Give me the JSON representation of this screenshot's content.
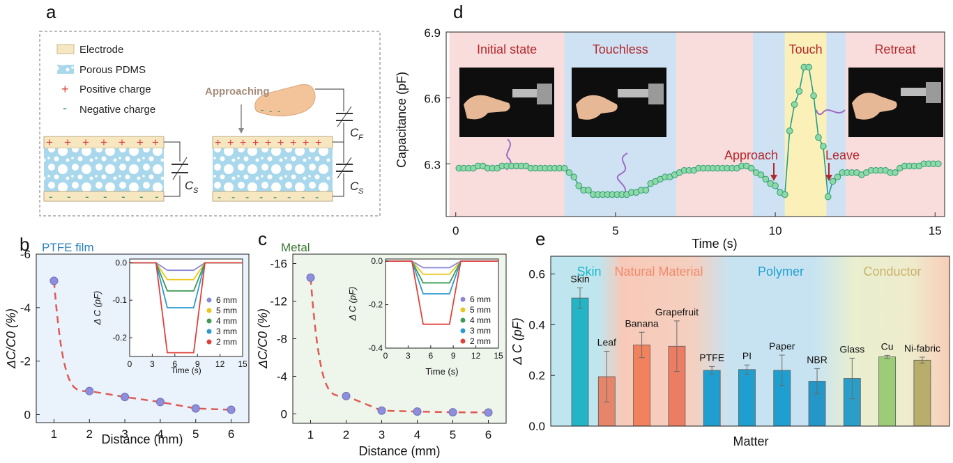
{
  "panels": {
    "a": "a",
    "b": "b",
    "c": "c",
    "d": "d",
    "e": "e"
  },
  "schematic": {
    "legend": [
      "Electrode",
      "Porous PDMS",
      "Positive charge",
      "Negative charge"
    ],
    "approaching": "Approaching",
    "cs": "C",
    "cs_sub": "S",
    "cf": "C",
    "cf_sub": "F",
    "colors": {
      "electrode": "#f6e7c1",
      "pdms": "#a9d8ec",
      "positive": "#e0413b",
      "negative": "#2e8b6b"
    }
  },
  "chart_data": [
    {
      "id": "b",
      "type": "scatter",
      "title": "PTFE film",
      "xlabel": "Distance (mm)",
      "ylabel": "ΔC/C0 (%)",
      "x": [
        1,
        2,
        3,
        4,
        5,
        6
      ],
      "y": [
        -5.0,
        -0.88,
        -0.66,
        -0.47,
        -0.23,
        -0.18
      ],
      "xlim": [
        0.5,
        6.5
      ],
      "ylim": [
        0.3,
        -6.0
      ],
      "xticks": [
        "1",
        "2",
        "3",
        "4",
        "5",
        "6"
      ],
      "yticks": [
        "-6",
        "-4",
        "-2",
        "0"
      ],
      "ytick_values": [
        -6,
        -4,
        -2,
        0
      ],
      "fit": "dashed red exponential",
      "background": "#eaf3fb",
      "inset": {
        "type": "line",
        "xlabel": "Time (s)",
        "ylabel": "Δ C (pF)",
        "xlim": [
          0,
          15
        ],
        "ylim": [
          0.01,
          -0.25
        ],
        "xticks": [
          "0",
          "3",
          "6",
          "9",
          "12",
          "15"
        ],
        "yticks": [
          "0.0",
          "-0.1",
          "-0.2"
        ],
        "ytick_values": [
          0,
          -0.1,
          -0.2
        ],
        "series": [
          {
            "name": "6 mm",
            "color": "#8a87d6",
            "dip": -0.02
          },
          {
            "name": "5 mm",
            "color": "#e8c61b",
            "dip": -0.045
          },
          {
            "name": "4 mm",
            "color": "#3e9a55",
            "dip": -0.075
          },
          {
            "name": "3 mm",
            "color": "#2a9bd0",
            "dip": -0.12
          },
          {
            "name": "2 mm",
            "color": "#e0413b",
            "dip": -0.24
          }
        ]
      }
    },
    {
      "id": "c",
      "type": "scatter",
      "title": "Metal",
      "xlabel": "Distance (mm)",
      "ylabel": "ΔC/C0 (%)",
      "x": [
        1,
        2,
        3,
        4,
        5,
        6
      ],
      "y": [
        -14.5,
        -1.9,
        -0.35,
        -0.25,
        -0.18,
        -0.15
      ],
      "xlim": [
        0.5,
        6.5
      ],
      "ylim": [
        1.0,
        -17.0
      ],
      "xticks": [
        "1",
        "2",
        "3",
        "4",
        "5",
        "6"
      ],
      "yticks": [
        "-16",
        "-12",
        "-8",
        "-4",
        "0"
      ],
      "ytick_values": [
        -16,
        -12,
        -8,
        -4,
        0
      ],
      "fit": "dashed red exponential",
      "background": "#eef5ea",
      "inset": {
        "type": "line",
        "xlabel": "Time (s)",
        "ylabel": "Δ C (pF)",
        "xlim": [
          0,
          15
        ],
        "ylim": [
          0.01,
          -0.4
        ],
        "xticks": [
          "0",
          "3",
          "6",
          "9",
          "12",
          "15"
        ],
        "yticks": [
          "0.0",
          "-0.2",
          "-0.4"
        ],
        "ytick_values": [
          0,
          -0.2,
          -0.4
        ],
        "series": [
          {
            "name": "6 mm",
            "color": "#8a87d6",
            "dip": -0.03
          },
          {
            "name": "5 mm",
            "color": "#e8c61b",
            "dip": -0.06
          },
          {
            "name": "4 mm",
            "color": "#3e9a55",
            "dip": -0.1
          },
          {
            "name": "3 mm",
            "color": "#2a9bd0",
            "dip": -0.15
          },
          {
            "name": "2 mm",
            "color": "#e0413b",
            "dip": -0.29
          }
        ]
      }
    },
    {
      "id": "d",
      "type": "line",
      "title": "",
      "xlabel": "Time (s)",
      "ylabel": "Capacitance (pF)",
      "xlim": [
        -0.3,
        15.3
      ],
      "ylim": [
        6.06,
        6.9
      ],
      "xticks": [
        "0",
        "5",
        "10",
        "15"
      ],
      "xtick_values": [
        0,
        5,
        10,
        15
      ],
      "yticks": [
        "6.3",
        "6.6",
        "6.9"
      ],
      "ytick_values": [
        6.3,
        6.6,
        6.9
      ],
      "regions": [
        {
          "label": "Initial state",
          "from": -0.2,
          "to": 3.4,
          "color": "#f9dcdc"
        },
        {
          "label": "Touchless",
          "from": 3.4,
          "to": 6.9,
          "color": "#cfe2f3"
        },
        {
          "label": "",
          "from": 6.9,
          "to": 9.3,
          "color": "#f9dcdc"
        },
        {
          "label": "",
          "from": 9.3,
          "to": 10.3,
          "color": "#cfe2f3"
        },
        {
          "label": "Touch",
          "from": 10.3,
          "to": 11.6,
          "color": "#fbf0b8"
        },
        {
          "label": "",
          "from": 11.6,
          "to": 12.2,
          "color": "#cfe2f3"
        },
        {
          "label": "Retreat",
          "from": 12.2,
          "to": 15.3,
          "color": "#f9dcdc"
        }
      ],
      "annotations": [
        "Approach",
        "Leave"
      ],
      "x": [
        0.1,
        0.25,
        0.4,
        0.55,
        0.7,
        0.85,
        1.0,
        1.15,
        1.3,
        1.45,
        1.6,
        1.75,
        1.9,
        2.05,
        2.2,
        2.35,
        2.5,
        2.65,
        2.8,
        2.95,
        3.1,
        3.25,
        3.4,
        3.55,
        3.7,
        3.85,
        4.0,
        4.15,
        4.3,
        4.45,
        4.6,
        4.75,
        4.9,
        5.05,
        5.2,
        5.35,
        5.5,
        5.65,
        5.8,
        5.95,
        6.1,
        6.25,
        6.4,
        6.55,
        6.7,
        6.85,
        7.0,
        7.15,
        7.3,
        7.45,
        7.6,
        7.75,
        7.9,
        8.05,
        8.2,
        8.35,
        8.5,
        8.65,
        8.8,
        8.95,
        9.1,
        9.25,
        9.4,
        9.55,
        9.7,
        9.85,
        10.0,
        10.15,
        10.3,
        10.45,
        10.6,
        10.75,
        10.9,
        11.05,
        11.2,
        11.35,
        11.5,
        11.65,
        11.8,
        11.95,
        12.1,
        12.25,
        12.4,
        12.55,
        12.7,
        12.85,
        13.0,
        13.15,
        13.3,
        13.45,
        13.6,
        13.75,
        13.9,
        14.05,
        14.2,
        14.35,
        14.5,
        14.65,
        14.8,
        14.95,
        15.1
      ],
      "y": [
        6.28,
        6.28,
        6.28,
        6.28,
        6.29,
        6.29,
        6.28,
        6.28,
        6.28,
        6.29,
        6.29,
        6.29,
        6.29,
        6.29,
        6.29,
        6.28,
        6.28,
        6.28,
        6.28,
        6.28,
        6.28,
        6.28,
        6.28,
        6.26,
        6.24,
        6.2,
        6.18,
        6.18,
        6.16,
        6.16,
        6.16,
        6.16,
        6.16,
        6.16,
        6.16,
        6.16,
        6.17,
        6.17,
        6.18,
        6.18,
        6.21,
        6.22,
        6.23,
        6.24,
        6.24,
        6.25,
        6.26,
        6.27,
        6.27,
        6.27,
        6.28,
        6.28,
        6.28,
        6.28,
        6.28,
        6.28,
        6.28,
        6.28,
        6.28,
        6.29,
        6.29,
        6.28,
        6.26,
        6.25,
        6.23,
        6.21,
        6.2,
        6.17,
        6.16,
        6.45,
        6.57,
        6.63,
        6.74,
        6.74,
        6.61,
        6.42,
        6.38,
        6.15,
        6.22,
        6.24,
        6.26,
        6.26,
        6.26,
        6.26,
        6.25,
        6.26,
        6.27,
        6.27,
        6.27,
        6.27,
        6.26,
        6.26,
        6.28,
        6.29,
        6.29,
        6.29,
        6.29,
        6.3,
        6.3,
        6.3,
        6.3
      ],
      "color": "#1f9f8f",
      "marker_color": "#8fd8a8"
    },
    {
      "id": "e",
      "type": "bar",
      "title": "",
      "xlabel": "Matter",
      "ylabel": "Δ C (pF)",
      "ylim": [
        0,
        0.67
      ],
      "yticks": [
        "0.0",
        "0.2",
        "0.4",
        "0.6"
      ],
      "ytick_values": [
        0,
        0.2,
        0.4,
        0.6
      ],
      "groups": [
        {
          "label": "Skin",
          "color": "#1fb6c8",
          "from": 0,
          "to": 1
        },
        {
          "label": "Natural Material",
          "color": "#f08a6a",
          "from": 1,
          "to": 4
        },
        {
          "label": "Polymer",
          "color": "#1f9fd0",
          "from": 4,
          "to": 9
        },
        {
          "label": "Conductor",
          "color": "#c9b26a",
          "from": 9,
          "to": 11
        }
      ],
      "categories": [
        "Skin",
        "Leaf",
        "Banana",
        "Grapefruit",
        "PTFE",
        "PI",
        "Paper",
        "NBR",
        "Glass",
        "Cu",
        "Ni-fabric"
      ],
      "values": [
        0.505,
        0.195,
        0.32,
        0.315,
        0.22,
        0.223,
        0.22,
        0.177,
        0.188,
        0.273,
        0.26
      ],
      "errors": [
        0.04,
        0.1,
        0.05,
        0.1,
        0.015,
        0.018,
        0.06,
        0.05,
        0.08,
        0.006,
        0.012
      ],
      "bar_colors": [
        "#23b5c6",
        "#e5866a",
        "#f2825e",
        "#ec7d62",
        "#1f9fcf",
        "#1f9fcf",
        "#1f9fcf",
        "#2596c8",
        "#2a9ec9",
        "#9ccc78",
        "#b8ad6a"
      ]
    }
  ]
}
